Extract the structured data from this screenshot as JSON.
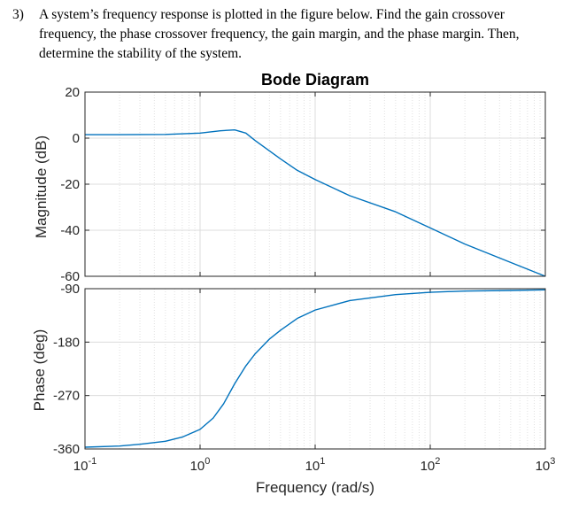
{
  "question": {
    "number": "3)",
    "text": "A system’s frequency response is plotted in the figure below. Find the gain crossover frequency, the phase crossover frequency, the gain margin, and the phase margin. Then, determine the stability of the system."
  },
  "chart_data": {
    "type": "line",
    "title": "Bode Diagram",
    "xlabel": "Frequency  (rad/s)",
    "x_scale": "log",
    "xlim": [
      0.1,
      1000
    ],
    "x_ticks": [
      {
        "base": "10",
        "exp": "-1"
      },
      {
        "base": "10",
        "exp": "0"
      },
      {
        "base": "10",
        "exp": "1"
      },
      {
        "base": "10",
        "exp": "2"
      },
      {
        "base": "10",
        "exp": "3"
      }
    ],
    "grid": true,
    "line_color": "#0072BD",
    "panels": [
      {
        "name": "magnitude",
        "ylabel": "Magnitude (dB)",
        "ylim": [
          -60,
          20
        ],
        "y_ticks": [
          "20",
          "0",
          "-20",
          "-40",
          "-60"
        ],
        "x": [
          0.1,
          0.2,
          0.5,
          1,
          1.5,
          2,
          2.5,
          3,
          4,
          5,
          7,
          10,
          20,
          50,
          100,
          200,
          500,
          1000
        ],
        "y": [
          1.5,
          1.5,
          1.6,
          2.2,
          3.2,
          3.6,
          2.2,
          -1,
          -5.5,
          -9,
          -14,
          -18,
          -25,
          -32,
          -39,
          -46,
          -54,
          -60
        ]
      },
      {
        "name": "phase",
        "ylabel": "Phase (deg)",
        "ylim": [
          -360,
          -90
        ],
        "y_ticks": [
          "-90",
          "-180",
          "-270",
          "-360"
        ],
        "x": [
          0.1,
          0.2,
          0.3,
          0.5,
          0.7,
          1,
          1.3,
          1.6,
          2,
          2.5,
          3,
          4,
          5,
          7,
          10,
          20,
          50,
          100,
          200,
          500,
          1000
        ],
        "y": [
          -357,
          -355,
          -352,
          -347,
          -340,
          -327,
          -308,
          -284,
          -250,
          -220,
          -200,
          -175,
          -160,
          -140,
          -126,
          -110,
          -100,
          -96,
          -94,
          -93,
          -92
        ]
      }
    ]
  }
}
